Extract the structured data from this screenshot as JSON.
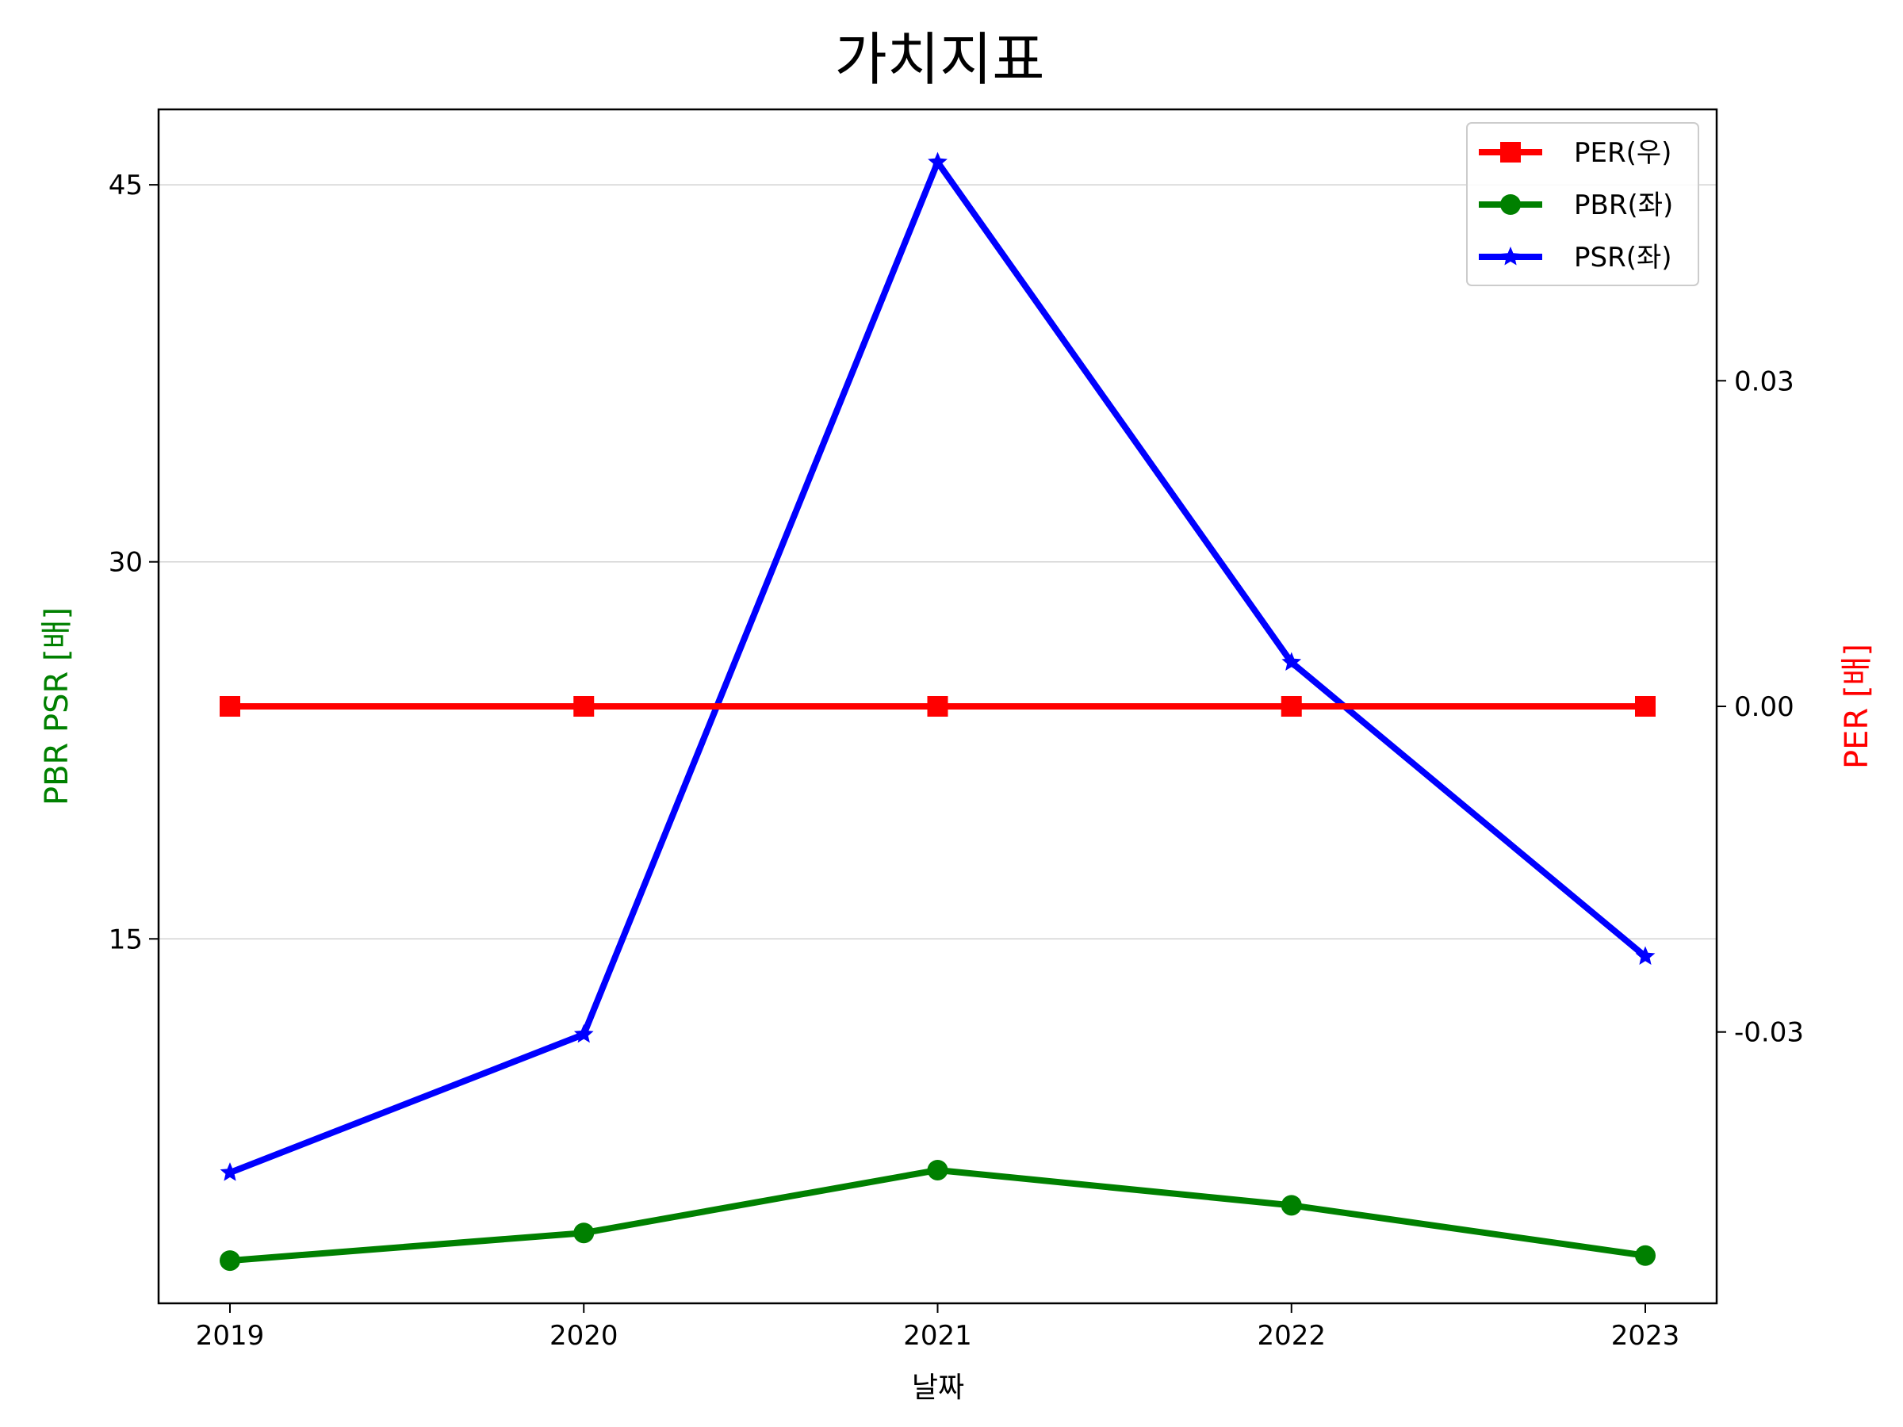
{
  "chart_data": {
    "type": "line",
    "title": "가치지표",
    "xlabel": "날짜",
    "ylabel_left": "PBR PSR [배]",
    "ylabel_right": "PER [배]",
    "categories": [
      "2019",
      "2020",
      "2021",
      "2022",
      "2023"
    ],
    "left_axis": {
      "ylim": [
        0.5,
        48
      ],
      "ticks": [
        15,
        30,
        45
      ],
      "tick_labels": [
        "15",
        "30",
        "45"
      ]
    },
    "right_axis": {
      "ylim": [
        -0.055,
        0.055
      ],
      "ticks": [
        0.03,
        0.0,
        -0.03
      ],
      "tick_labels": [
        "0.03",
        "0.00",
        "-0.03"
      ]
    },
    "grid": "horizontal",
    "legend_position": "top-right",
    "series": [
      {
        "name": "PER(우)",
        "axis": "right",
        "color": "#ff0000",
        "marker": "square",
        "values": [
          0,
          0,
          0,
          0,
          0
        ]
      },
      {
        "name": "PBR(좌)",
        "axis": "left",
        "color": "#008000",
        "marker": "circle",
        "values": [
          2.2,
          3.3,
          5.8,
          4.4,
          2.4
        ]
      },
      {
        "name": "PSR(좌)",
        "axis": "left",
        "color": "#0000ff",
        "marker": "star",
        "values": [
          5.7,
          11.2,
          45.9,
          26.0,
          14.3
        ]
      }
    ]
  }
}
